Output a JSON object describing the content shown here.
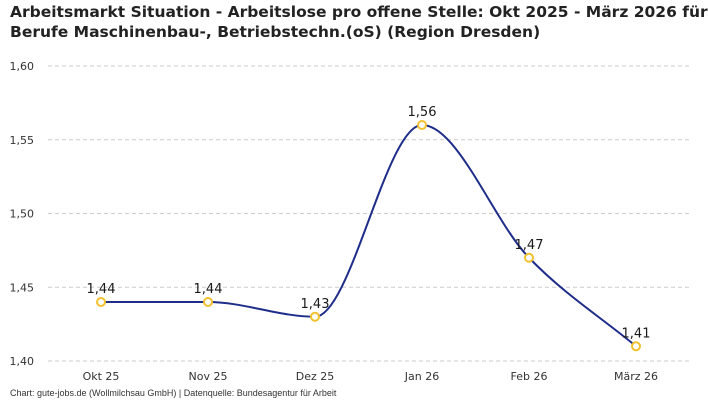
{
  "title_line1": "Arbeitsmarkt Situation - Arbeitslose pro offene Stelle: Okt 2025 - März 2026 für",
  "title_line2": "Berufe Maschinenbau-, Betriebstechn.(oS) (Region Dresden)",
  "footer": "Chart: gute-jobs.de (Wollmilchsau GmbH) | Datenquelle: Bundesagentur für Arbeit",
  "colors": {
    "line": "#1f2d8a",
    "marker": "#f2c12e",
    "grid": "#cccccc"
  },
  "chart_data": {
    "type": "line",
    "categories": [
      "Okt 25",
      "Nov 25",
      "Dez 25",
      "Jan 26",
      "Feb 26",
      "März 26"
    ],
    "values": [
      1.44,
      1.44,
      1.43,
      1.56,
      1.47,
      1.41
    ],
    "labels": [
      "1,44",
      "1,44",
      "1,43",
      "1,56",
      "1,47",
      "1,41"
    ],
    "yticks": [
      "1,40",
      "1,45",
      "1,50",
      "1,55",
      "1,60"
    ],
    "ytick_values": [
      1.4,
      1.45,
      1.5,
      1.55,
      1.6
    ],
    "ylim": [
      1.4,
      1.6
    ],
    "grid": "horizontal dashed",
    "smooth": true
  }
}
